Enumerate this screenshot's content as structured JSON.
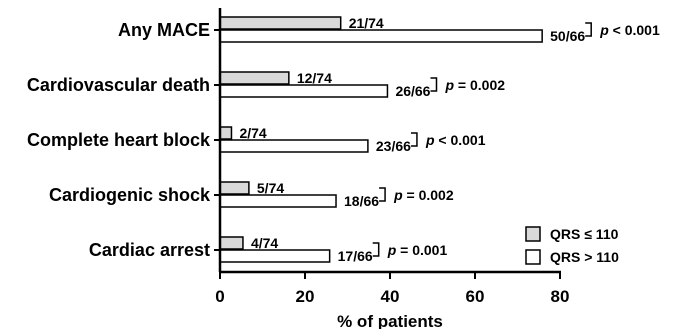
{
  "chart_data": {
    "type": "bar",
    "orientation": "horizontal",
    "categories": [
      "Any MACE",
      "Cardiovascular death",
      "Complete heart block",
      "Cardiogenic shock",
      "Cardiac arrest"
    ],
    "series": [
      {
        "name": "QRS ≤ 110",
        "color": "#d9d9d9",
        "values": [
          28.4,
          16.2,
          2.7,
          6.8,
          5.4
        ],
        "labels": [
          "21/74",
          "12/74",
          "2/74",
          "5/74",
          "4/74"
        ]
      },
      {
        "name": "QRS > 110",
        "color": "#ffffff",
        "values": [
          75.8,
          39.4,
          34.8,
          27.3,
          25.8
        ],
        "labels": [
          "50/66",
          "26/66",
          "23/66",
          "18/66",
          "17/66"
        ]
      }
    ],
    "p_values": [
      "p < 0.001",
      "p = 0.002",
      "p < 0.001",
      "p = 0.002",
      "p = 0.001"
    ],
    "xlabel": "% of patients",
    "ylabel": "",
    "xlim": [
      0,
      80
    ],
    "xticks": [
      0,
      20,
      40,
      60,
      80
    ],
    "grid": false,
    "legend_placement": "bottom-right"
  }
}
